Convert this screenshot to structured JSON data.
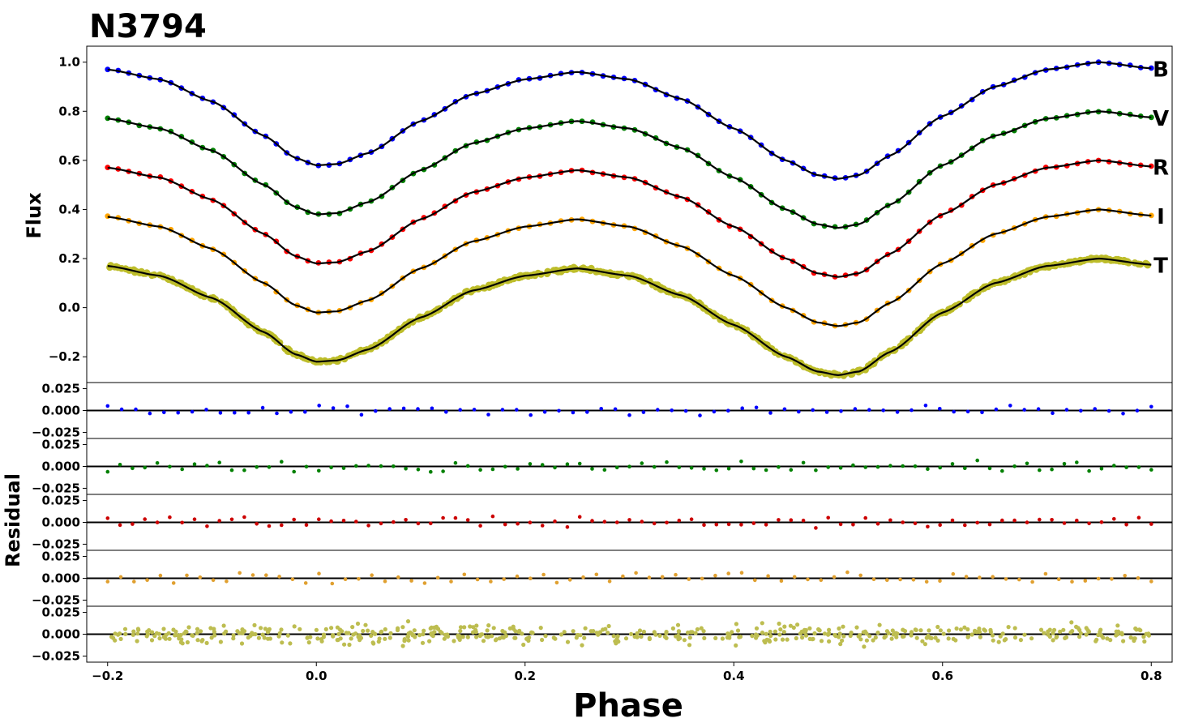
{
  "chart_data": {
    "type": "scatter",
    "title": "N3794",
    "xlabel": "Phase",
    "top_panel": {
      "ylabel": "Flux",
      "xlim": [
        -0.22,
        0.82
      ],
      "ylim": [
        -0.305,
        1.065
      ],
      "yticks": [
        -0.2,
        0.0,
        0.2,
        0.4,
        0.6,
        0.8,
        1.0
      ],
      "ytick_labels": [
        "−0.2",
        "0.0",
        "0.2",
        "0.4",
        "0.6",
        "0.8",
        "1.0"
      ],
      "series": [
        {
          "name": "B",
          "color": "#0000ff",
          "model": [
            [
              -0.2,
              0.97
            ],
            [
              -0.15,
              0.93
            ],
            [
              -0.1,
              0.84
            ],
            [
              -0.05,
              0.7
            ],
            [
              -0.02,
              0.61
            ],
            [
              0.0,
              0.58
            ],
            [
              0.02,
              0.585
            ],
            [
              0.05,
              0.63
            ],
            [
              0.1,
              0.76
            ],
            [
              0.15,
              0.87
            ],
            [
              0.2,
              0.93
            ],
            [
              0.25,
              0.96
            ],
            [
              0.3,
              0.93
            ],
            [
              0.35,
              0.85
            ],
            [
              0.4,
              0.73
            ],
            [
              0.45,
              0.6
            ],
            [
              0.48,
              0.54
            ],
            [
              0.5,
              0.525
            ],
            [
              0.52,
              0.54
            ],
            [
              0.55,
              0.62
            ],
            [
              0.6,
              0.78
            ],
            [
              0.65,
              0.9
            ],
            [
              0.7,
              0.97
            ],
            [
              0.75,
              1.0
            ],
            [
              0.8,
              0.975
            ]
          ]
        },
        {
          "name": "V",
          "color": "#008000",
          "model": [
            [
              -0.2,
              0.77
            ],
            [
              -0.15,
              0.73
            ],
            [
              -0.1,
              0.64
            ],
            [
              -0.05,
              0.5
            ],
            [
              -0.02,
              0.41
            ],
            [
              0.0,
              0.38
            ],
            [
              0.02,
              0.385
            ],
            [
              0.05,
              0.43
            ],
            [
              0.1,
              0.56
            ],
            [
              0.15,
              0.67
            ],
            [
              0.2,
              0.73
            ],
            [
              0.25,
              0.76
            ],
            [
              0.3,
              0.73
            ],
            [
              0.35,
              0.65
            ],
            [
              0.4,
              0.53
            ],
            [
              0.45,
              0.4
            ],
            [
              0.48,
              0.34
            ],
            [
              0.5,
              0.325
            ],
            [
              0.52,
              0.34
            ],
            [
              0.55,
              0.42
            ],
            [
              0.6,
              0.58
            ],
            [
              0.65,
              0.7
            ],
            [
              0.7,
              0.77
            ],
            [
              0.75,
              0.8
            ],
            [
              0.8,
              0.775
            ]
          ]
        },
        {
          "name": "R",
          "color": "#ff0000",
          "model": [
            [
              -0.2,
              0.57
            ],
            [
              -0.15,
              0.53
            ],
            [
              -0.1,
              0.44
            ],
            [
              -0.05,
              0.3
            ],
            [
              -0.02,
              0.21
            ],
            [
              0.0,
              0.18
            ],
            [
              0.02,
              0.185
            ],
            [
              0.05,
              0.23
            ],
            [
              0.1,
              0.36
            ],
            [
              0.15,
              0.47
            ],
            [
              0.2,
              0.53
            ],
            [
              0.25,
              0.56
            ],
            [
              0.3,
              0.53
            ],
            [
              0.35,
              0.45
            ],
            [
              0.4,
              0.33
            ],
            [
              0.45,
              0.2
            ],
            [
              0.48,
              0.14
            ],
            [
              0.5,
              0.125
            ],
            [
              0.52,
              0.14
            ],
            [
              0.55,
              0.22
            ],
            [
              0.6,
              0.38
            ],
            [
              0.65,
              0.5
            ],
            [
              0.7,
              0.57
            ],
            [
              0.75,
              0.6
            ],
            [
              0.8,
              0.575
            ]
          ]
        },
        {
          "name": "I",
          "color": "#ffa500",
          "model": [
            [
              -0.2,
              0.37
            ],
            [
              -0.15,
              0.33
            ],
            [
              -0.1,
              0.24
            ],
            [
              -0.05,
              0.1
            ],
            [
              -0.02,
              0.01
            ],
            [
              0.0,
              -0.02
            ],
            [
              0.02,
              -0.015
            ],
            [
              0.05,
              0.03
            ],
            [
              0.1,
              0.16
            ],
            [
              0.15,
              0.27
            ],
            [
              0.2,
              0.33
            ],
            [
              0.25,
              0.36
            ],
            [
              0.3,
              0.33
            ],
            [
              0.35,
              0.25
            ],
            [
              0.4,
              0.13
            ],
            [
              0.45,
              0.0
            ],
            [
              0.48,
              -0.06
            ],
            [
              0.5,
              -0.075
            ],
            [
              0.52,
              -0.06
            ],
            [
              0.55,
              0.02
            ],
            [
              0.6,
              0.18
            ],
            [
              0.65,
              0.3
            ],
            [
              0.7,
              0.37
            ],
            [
              0.75,
              0.4
            ],
            [
              0.8,
              0.375
            ]
          ]
        },
        {
          "name": "T",
          "color": "#bdbd2a",
          "model": [
            [
              -0.2,
              0.17
            ],
            [
              -0.15,
              0.13
            ],
            [
              -0.1,
              0.04
            ],
            [
              -0.05,
              -0.1
            ],
            [
              -0.02,
              -0.19
            ],
            [
              0.0,
              -0.22
            ],
            [
              0.02,
              -0.215
            ],
            [
              0.05,
              -0.17
            ],
            [
              0.1,
              -0.04
            ],
            [
              0.15,
              0.07
            ],
            [
              0.2,
              0.13
            ],
            [
              0.25,
              0.16
            ],
            [
              0.3,
              0.13
            ],
            [
              0.35,
              0.05
            ],
            [
              0.4,
              -0.07
            ],
            [
              0.45,
              -0.2
            ],
            [
              0.48,
              -0.26
            ],
            [
              0.5,
              -0.275
            ],
            [
              0.52,
              -0.26
            ],
            [
              0.55,
              -0.18
            ],
            [
              0.6,
              -0.02
            ],
            [
              0.65,
              0.1
            ],
            [
              0.7,
              0.17
            ],
            [
              0.75,
              0.2
            ],
            [
              0.8,
              0.175
            ]
          ]
        }
      ]
    },
    "residual_panels": {
      "ylabel": "Residual",
      "ylim": [
        -0.032,
        0.032
      ],
      "yticks": [
        -0.025,
        0.0,
        0.025
      ],
      "ytick_labels": [
        "−0.025",
        "0.000",
        "0.025"
      ],
      "panels": [
        {
          "name": "B",
          "color": "#0000ff",
          "amplitude": 0.005,
          "count": 75
        },
        {
          "name": "V",
          "color": "#008000",
          "amplitude": 0.006,
          "count": 85
        },
        {
          "name": "R",
          "color": "#cc0000",
          "amplitude": 0.006,
          "count": 85
        },
        {
          "name": "I",
          "color": "#e0a030",
          "amplitude": 0.006,
          "count": 80
        },
        {
          "name": "T",
          "color": "#bdbd50",
          "amplitude": 0.01,
          "count": 520
        }
      ]
    },
    "xticks": [
      -0.2,
      0.0,
      0.2,
      0.4,
      0.6,
      0.8
    ],
    "xtick_labels": [
      "−0.2",
      "0.0",
      "0.2",
      "0.4",
      "0.6",
      "0.8"
    ]
  }
}
